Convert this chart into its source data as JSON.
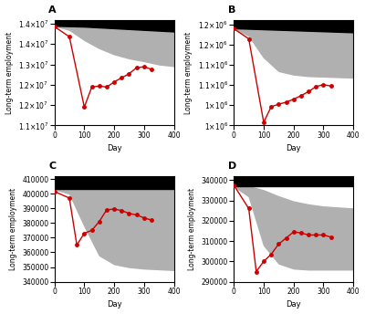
{
  "panels": [
    {
      "label": "A",
      "ylabel": "Long-term employment",
      "xlabel": "Day",
      "xlim": [
        0,
        400
      ],
      "ylim": [
        11500000.0,
        14100000.0
      ],
      "yticks": [
        11500000.0,
        12000000.0,
        12500000.0,
        13000000.0,
        13500000.0,
        14000000.0
      ],
      "red_x": [
        0,
        50,
        100,
        125,
        150,
        175,
        200,
        225,
        250,
        275,
        300,
        325
      ],
      "red_y": [
        13930000.0,
        13680000.0,
        11950000.0,
        12440000.0,
        12470000.0,
        12440000.0,
        12570000.0,
        12670000.0,
        12770000.0,
        12920000.0,
        12940000.0,
        12880000.0
      ],
      "black_x": [
        0,
        50,
        100,
        150,
        200,
        250,
        300,
        350,
        400
      ],
      "black_upper": [
        14100000.0,
        14100000.0,
        14100000.0,
        14100000.0,
        14100000.0,
        14100000.0,
        14100000.0,
        14100000.0,
        14100000.0
      ],
      "black_lower": [
        13950000.0,
        13940000.0,
        13930000.0,
        13910000.0,
        13890000.0,
        13870000.0,
        13850000.0,
        13830000.0,
        13810000.0
      ],
      "gray_x": [
        0,
        50,
        100,
        150,
        200,
        250,
        300,
        350,
        400
      ],
      "gray_upper": [
        13950000.0,
        13940000.0,
        13930000.0,
        13910000.0,
        13890000.0,
        13870000.0,
        13850000.0,
        13830000.0,
        13810000.0
      ],
      "gray_lower": [
        13950000.0,
        13850000.0,
        13600000.0,
        13400000.0,
        13250000.0,
        13150000.0,
        13080000.0,
        13000000.0,
        12960000.0
      ]
    },
    {
      "label": "B",
      "ylabel": "Long-term employment",
      "xlabel": "Day",
      "xlim": [
        0,
        400
      ],
      "ylim": [
        1000000.0,
        1210000.0
      ],
      "yticks": [
        1000000.0,
        1040000.0,
        1080000.0,
        1120000.0,
        1160000.0,
        1200000.0
      ],
      "red_x": [
        0,
        50,
        100,
        125,
        150,
        175,
        200,
        225,
        250,
        275,
        300,
        325
      ],
      "red_y": [
        1192000.0,
        1172000.0,
        1006000.0,
        1037000.0,
        1042000.0,
        1046000.0,
        1052000.0,
        1059000.0,
        1067000.0,
        1077000.0,
        1081000.0,
        1078000.0
      ],
      "black_x": [
        0,
        50,
        100,
        150,
        200,
        250,
        300,
        350,
        400
      ],
      "black_upper": [
        1210000.0,
        1210000.0,
        1210000.0,
        1210000.0,
        1210000.0,
        1210000.0,
        1210000.0,
        1210000.0,
        1210000.0
      ],
      "black_lower": [
        1193000.0,
        1192000.0,
        1191000.0,
        1190000.0,
        1189000.0,
        1188000.0,
        1187000.0,
        1186000.0,
        1185000.0
      ],
      "gray_x": [
        0,
        50,
        100,
        150,
        200,
        250,
        300,
        350,
        400
      ],
      "gray_upper": [
        1193000.0,
        1192000.0,
        1191000.0,
        1190000.0,
        1189000.0,
        1188000.0,
        1187000.0,
        1186000.0,
        1185000.0
      ],
      "gray_lower": [
        1193000.0,
        1178000.0,
        1135000.0,
        1108000.0,
        1101000.0,
        1098000.0,
        1097000.0,
        1096000.0,
        1095000.0
      ]
    },
    {
      "label": "C",
      "ylabel": "Long-term employment",
      "xlabel": "Day",
      "xlim": [
        0,
        400
      ],
      "ylim": [
        340000,
        412000
      ],
      "yticks": [
        340000,
        350000,
        360000,
        370000,
        380000,
        390000,
        400000,
        410000
      ],
      "red_x": [
        0,
        50,
        75,
        100,
        125,
        150,
        175,
        200,
        225,
        250,
        275,
        300,
        325
      ],
      "red_y": [
        401500,
        397000,
        365000,
        373000,
        375000,
        381000,
        389000,
        389500,
        388500,
        386500,
        385500,
        383500,
        382000
      ],
      "black_x": [
        0,
        50,
        100,
        150,
        200,
        250,
        300,
        350,
        400
      ],
      "black_upper": [
        412000,
        412000,
        412000,
        412000,
        412000,
        412000,
        412000,
        412000,
        412000
      ],
      "black_lower": [
        403000,
        403000,
        403000,
        403000,
        403000,
        403000,
        403000,
        403000,
        403000
      ],
      "gray_x": [
        0,
        50,
        100,
        150,
        200,
        250,
        300,
        350,
        400
      ],
      "gray_upper": [
        403000,
        403000,
        403000,
        403000,
        403000,
        403000,
        403000,
        403000,
        403000
      ],
      "gray_lower": [
        403000,
        400000,
        378000,
        358000,
        352000,
        350000,
        349000,
        348500,
        348000
      ]
    },
    {
      "label": "D",
      "ylabel": "Long-term employment",
      "xlabel": "Day",
      "xlim": [
        0,
        400
      ],
      "ylim": [
        290000,
        342000
      ],
      "yticks": [
        290000,
        300000,
        310000,
        320000,
        330000,
        340000
      ],
      "red_x": [
        0,
        50,
        75,
        100,
        125,
        150,
        175,
        200,
        225,
        250,
        275,
        300,
        325
      ],
      "red_y": [
        337500,
        326000,
        295000,
        300000,
        303500,
        308500,
        311500,
        314500,
        314000,
        313000,
        313000,
        313000,
        312000
      ],
      "black_x": [
        0,
        50,
        100,
        150,
        200,
        250,
        300,
        350,
        400
      ],
      "black_upper": [
        342000,
        342000,
        342000,
        342000,
        342000,
        342000,
        342000,
        342000,
        342000
      ],
      "black_lower": [
        337000,
        337000,
        337000,
        337000,
        337000,
        337000,
        337000,
        337000,
        337000
      ],
      "gray_x": [
        0,
        50,
        100,
        150,
        200,
        250,
        300,
        350,
        400
      ],
      "gray_upper": [
        337000,
        337000,
        335000,
        332000,
        329500,
        328000,
        327000,
        326500,
        326000
      ],
      "gray_lower": [
        337000,
        332000,
        308000,
        299000,
        296500,
        296000,
        296000,
        296000,
        296000
      ]
    }
  ],
  "red_color": "#cc0000",
  "black_color": "#000000",
  "gray_color": "#b0b0b0",
  "fig_width": 4.0,
  "fig_height": 3.44,
  "dpi": 100
}
